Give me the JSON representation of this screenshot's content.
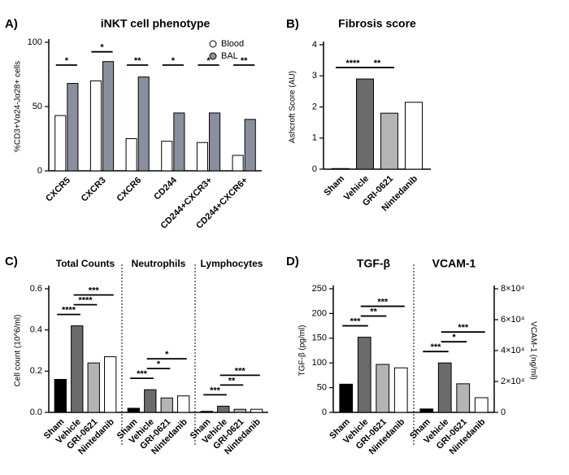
{
  "chart_data": [
    {
      "type": "bar",
      "panel": "A)",
      "title": "iNKT cell phenotype",
      "ylabel": "%CD3+Vα24-Jα28+ cells",
      "categories": [
        "CXCR5",
        "CXCR3",
        "CXCR6",
        "CD244",
        "CD244+CXCR3+",
        "CD244+CXCR6+"
      ],
      "series": [
        {
          "name": "Blood",
          "color": "#ffffff",
          "values": [
            43,
            70,
            25,
            23,
            22,
            12
          ]
        },
        {
          "name": "BAL",
          "color": "#8a8f9e",
          "values": [
            68,
            85,
            73,
            45,
            45,
            40
          ]
        }
      ],
      "significance": [
        "*",
        "*",
        "**",
        "*",
        "*",
        "**"
      ],
      "ylim": [
        0,
        100
      ],
      "yticks": [
        0,
        50,
        100
      ],
      "legend": "upper right"
    },
    {
      "type": "bar",
      "panel": "B)",
      "title": "Fibrosis score",
      "ylabel": "Ashcroft Score (AU)",
      "categories": [
        "Sham",
        "Vehicle",
        "GRI-0621",
        "Nintedanib"
      ],
      "colors": [
        "#000000",
        "#6b6b6b",
        "#b4b4b4",
        "#ffffff"
      ],
      "values": [
        0.02,
        2.9,
        1.8,
        2.15
      ],
      "comparisons": [
        {
          "label": "****",
          "between": [
            "Sham",
            "Vehicle"
          ]
        },
        {
          "label": "**",
          "between": [
            "Vehicle",
            "GRI-0621"
          ]
        }
      ],
      "ylim": [
        0,
        4
      ],
      "yticks": [
        0,
        1,
        2,
        3,
        4
      ]
    },
    {
      "type": "bar",
      "panel": "C)",
      "ylabel": "Cell count (10^6/ml)",
      "categories": [
        "Sham",
        "Vehicle",
        "GRI-0621",
        "Nintedanib"
      ],
      "colors": [
        "#000000",
        "#6b6b6b",
        "#b4b4b4",
        "#ffffff"
      ],
      "groups": [
        {
          "title": "Total Counts",
          "values": [
            0.16,
            0.42,
            0.24,
            0.27
          ],
          "comparisons": [
            {
              "label": "****",
              "between": [
                "Sham",
                "Vehicle"
              ]
            },
            {
              "label": "****",
              "between": [
                "Vehicle",
                "GRI-0621"
              ]
            },
            {
              "label": "***",
              "between": [
                "Vehicle",
                "Nintedanib"
              ]
            }
          ]
        },
        {
          "title": "Neutrophils",
          "values": [
            0.02,
            0.11,
            0.07,
            0.08
          ],
          "comparisons": [
            {
              "label": "***",
              "between": [
                "Sham",
                "Vehicle"
              ]
            },
            {
              "label": "*",
              "between": [
                "Vehicle",
                "GRI-0621"
              ]
            },
            {
              "label": "*",
              "between": [
                "Vehicle",
                "Nintedanib"
              ]
            }
          ]
        },
        {
          "title": "Lymphocytes",
          "values": [
            0.005,
            0.03,
            0.015,
            0.015
          ],
          "comparisons": [
            {
              "label": "***",
              "between": [
                "Sham",
                "Vehicle"
              ]
            },
            {
              "label": "**",
              "between": [
                "Vehicle",
                "GRI-0621"
              ]
            },
            {
              "label": "***",
              "between": [
                "Vehicle",
                "Nintedanib"
              ]
            }
          ]
        }
      ],
      "ylim": [
        0,
        0.6
      ],
      "yticks": [
        {
          "value": 0,
          "label": "0.0"
        },
        0.2,
        0.4,
        0.6
      ]
    },
    {
      "type": "bar",
      "panel": "D)",
      "ylabel": "TGF-β (pg/ml)",
      "y2label": "VCAM-1 (ng/ml)",
      "categories": [
        "Sham",
        "Vehicle",
        "GRI-0621",
        "Nintedanib"
      ],
      "colors": [
        "#000000",
        "#6b6b6b",
        "#b4b4b4",
        "#ffffff"
      ],
      "series": [
        {
          "name": "TGF-β",
          "values": [
            57,
            152,
            97,
            90
          ],
          "comparisons": [
            {
              "label": "***",
              "between": [
                "Sham",
                "Vehicle"
              ]
            },
            {
              "label": "**",
              "between": [
                "Vehicle",
                "GRI-0621"
              ]
            },
            {
              "label": "***",
              "between": [
                "Vehicle",
                "Nintedanib"
              ]
            }
          ]
        },
        {
          "name": "VCAM-1",
          "axis": "y2",
          "values": [
            2200,
            32000,
            18500,
            9500
          ],
          "comparisons": [
            {
              "label": "***",
              "between": [
                "Sham",
                "Vehicle"
              ]
            },
            {
              "label": "*",
              "between": [
                "Vehicle",
                "GRI-0621"
              ]
            },
            {
              "label": "***",
              "between": [
                "Vehicle",
                "Nintedanib"
              ]
            }
          ]
        }
      ],
      "ylim": [
        0,
        250
      ],
      "yticks": [
        0,
        50,
        100,
        150,
        200,
        250
      ],
      "y2lim": [
        0,
        80000
      ],
      "y2ticks": [
        0,
        {
          "value": 20000,
          "label": "2×10⁴"
        },
        {
          "value": 40000,
          "label": "4×10⁴"
        },
        {
          "value": 60000,
          "label": "6×10⁴"
        },
        {
          "value": 80000,
          "label": "8×10⁴"
        }
      ]
    }
  ]
}
